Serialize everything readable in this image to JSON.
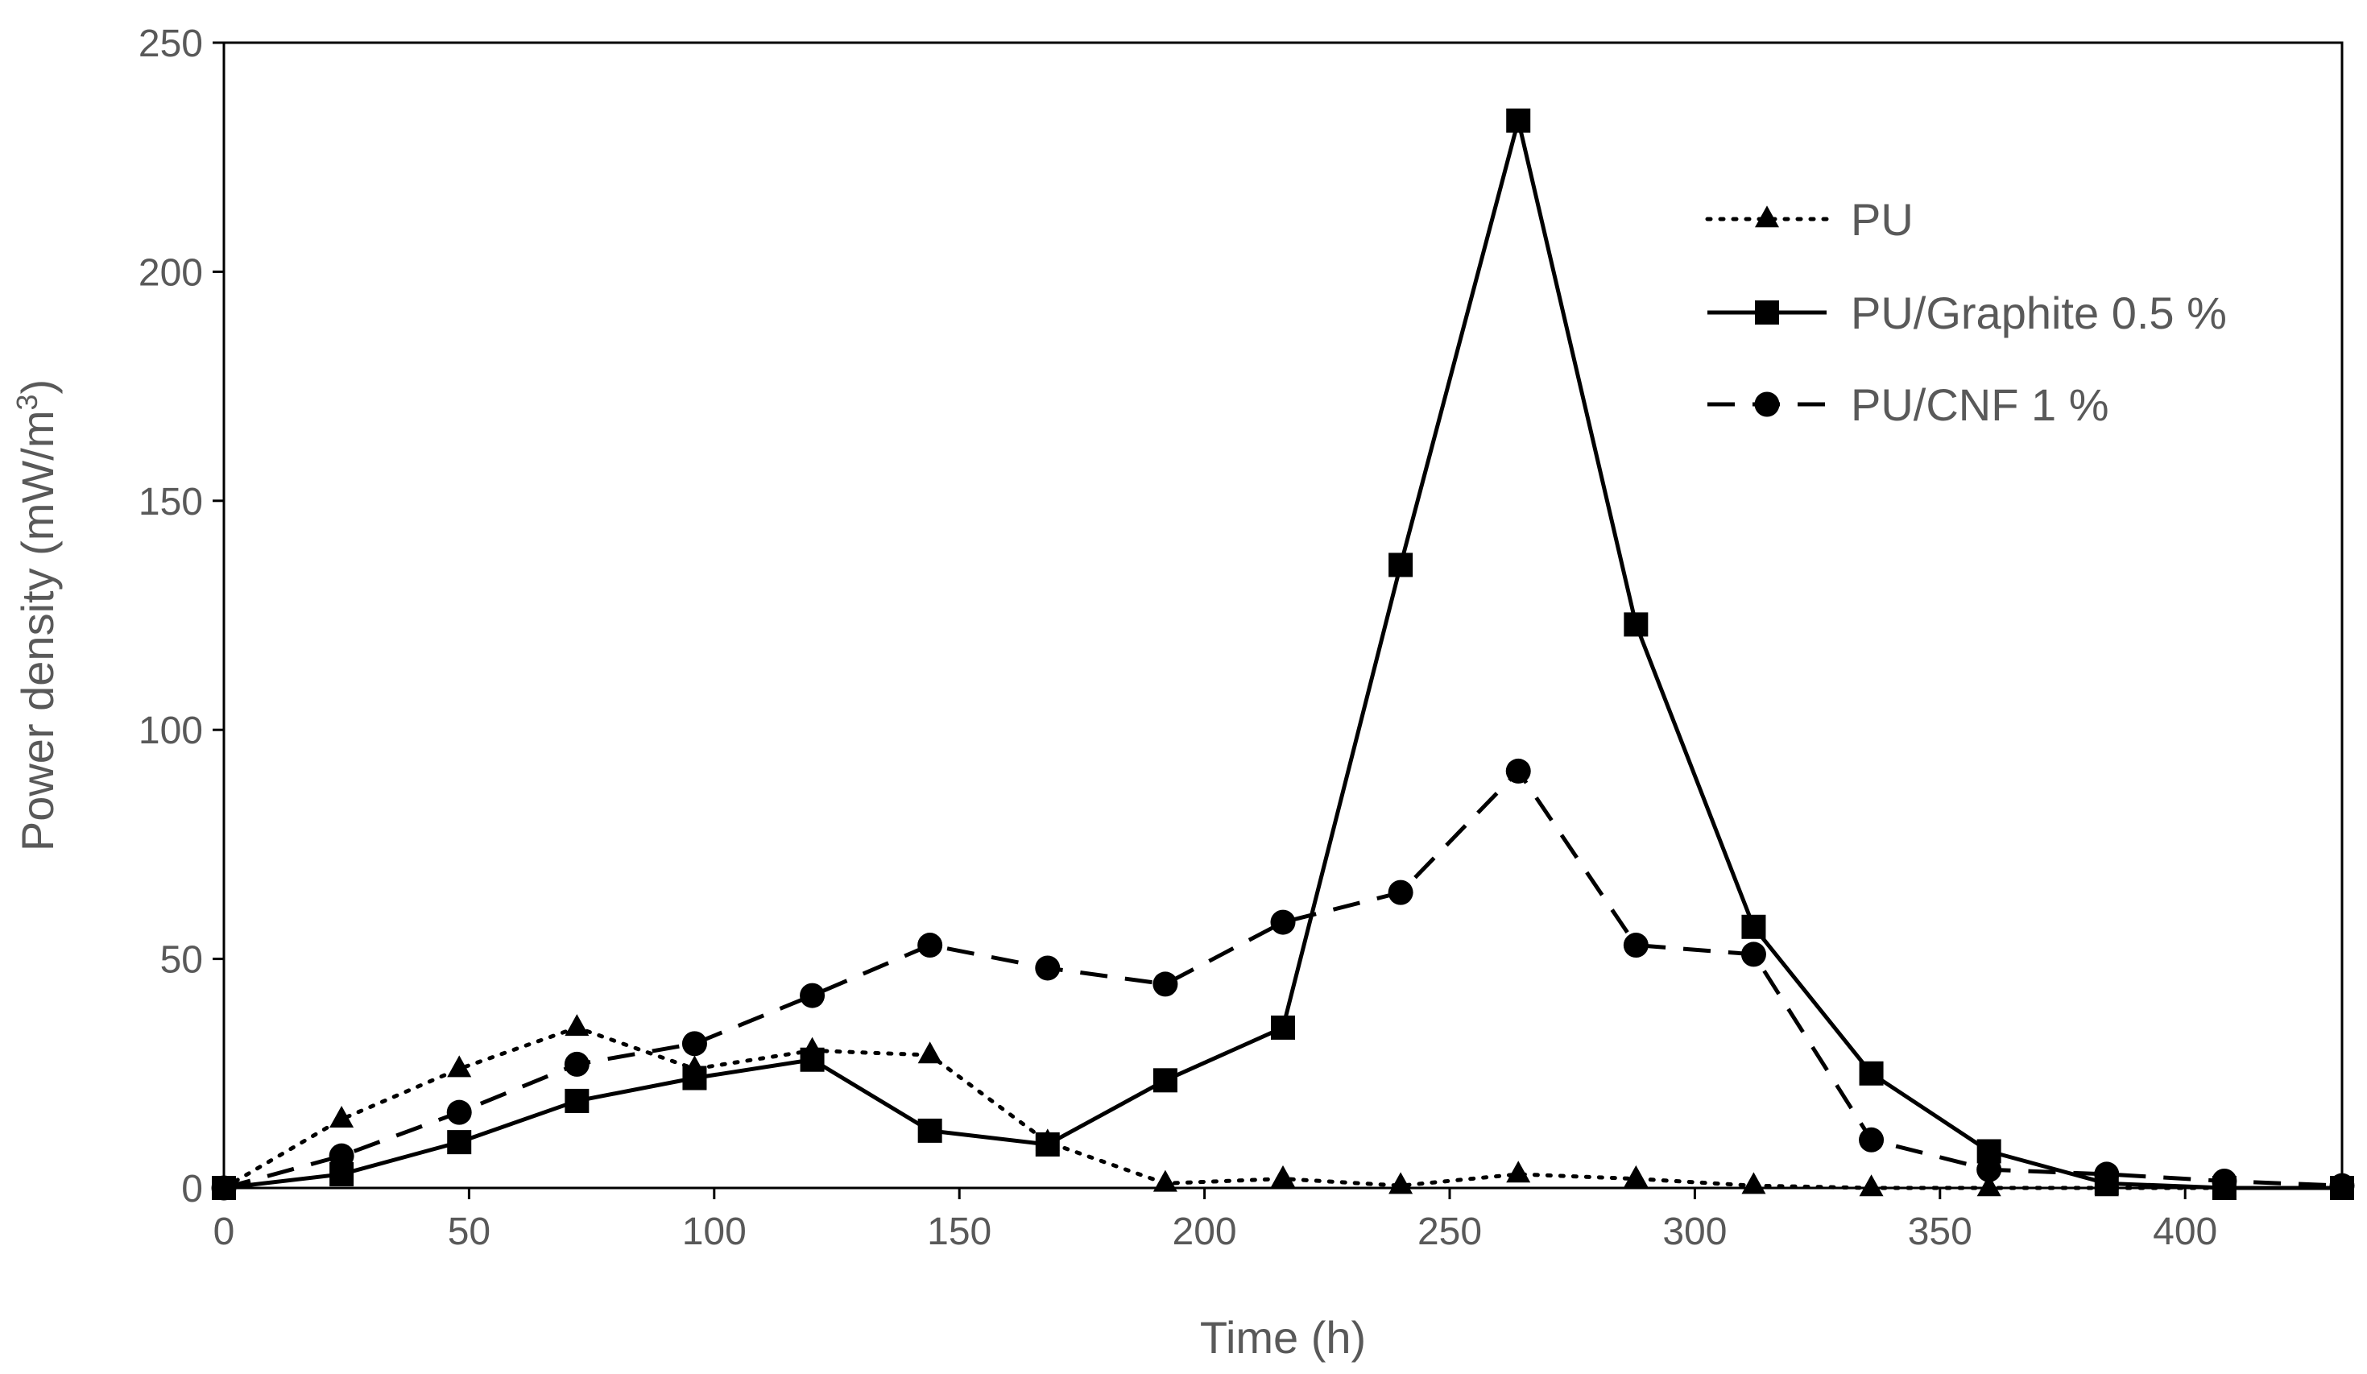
{
  "chart_data": {
    "type": "line",
    "title": "",
    "xlabel": "Time (h)",
    "ylabel": "Power density (mW/m",
    "ylabel_superscript": "3",
    "ylabel_suffix": ")",
    "xlim": [
      0,
      432
    ],
    "ylim": [
      0,
      250
    ],
    "xticks": [
      0,
      50,
      100,
      150,
      200,
      250,
      300,
      350,
      400
    ],
    "yticks": [
      0,
      50,
      100,
      150,
      200,
      250
    ],
    "grid": false,
    "legend_position": "top-right",
    "series": [
      {
        "name": "PU",
        "line_style": "dotted",
        "marker": "triangle",
        "x": [
          0,
          24,
          48,
          72,
          96,
          120,
          144,
          168,
          192,
          216,
          240,
          264,
          288,
          312,
          336,
          360,
          384,
          408,
          432
        ],
        "values": [
          0,
          15,
          26,
          35,
          26,
          30,
          29,
          10,
          1,
          2,
          0.5,
          3,
          2,
          0.5,
          0,
          0,
          0,
          0,
          0
        ]
      },
      {
        "name": "PU/Graphite 0.5 %",
        "line_style": "solid",
        "marker": "square",
        "x": [
          0,
          24,
          48,
          72,
          96,
          120,
          144,
          168,
          192,
          216,
          240,
          264,
          288,
          312,
          336,
          360,
          384,
          408,
          432
        ],
        "values": [
          0,
          3,
          10,
          19,
          24,
          28,
          12.5,
          9.5,
          23.5,
          35,
          136,
          233,
          123,
          57,
          25,
          8,
          1,
          0,
          0
        ]
      },
      {
        "name": "PU/CNF 1 %",
        "line_style": "dashed",
        "marker": "circle",
        "x": [
          0,
          24,
          48,
          72,
          96,
          120,
          144,
          168,
          192,
          216,
          240,
          264,
          288,
          312,
          336,
          360,
          384,
          408,
          432
        ],
        "values": [
          0,
          7,
          16.5,
          27,
          31.5,
          42,
          53,
          48,
          44.5,
          58,
          64.5,
          91,
          53,
          51,
          10.5,
          4,
          3,
          1.5,
          0.5
        ]
      }
    ],
    "colors": {
      "line": "#000000",
      "marker": "#000000",
      "axis": "#000000",
      "text": "#595959",
      "background": "#ffffff"
    }
  }
}
